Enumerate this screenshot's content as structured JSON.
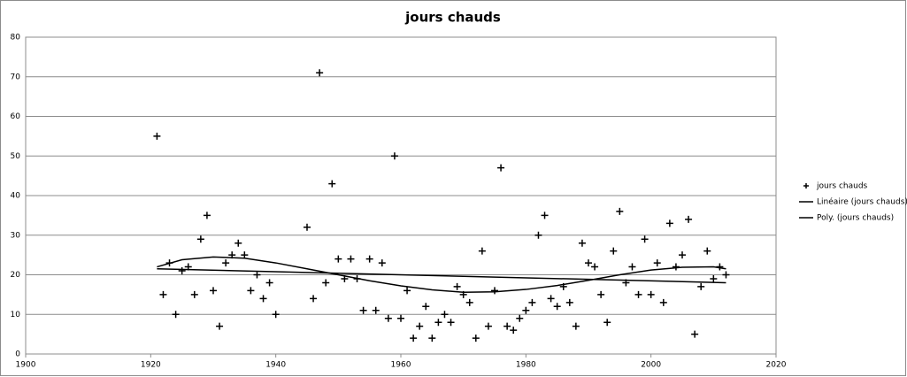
{
  "chart_data": {
    "type": "scatter",
    "title": "jours chauds",
    "xlim": [
      1900,
      2020
    ],
    "xticks": [
      1900,
      1920,
      1940,
      1960,
      1980,
      2000,
      2020
    ],
    "ylim": [
      0,
      80
    ],
    "yticks": [
      0,
      10,
      20,
      30,
      40,
      50,
      60,
      70,
      80
    ],
    "grid": true,
    "legend": "right",
    "series": [
      {
        "name": "jours chauds",
        "color": "#000000",
        "style": "marker",
        "x": [
          1921,
          1922,
          1923,
          1924,
          1925,
          1926,
          1927,
          1928,
          1929,
          1930,
          1931,
          1932,
          1933,
          1934,
          1935,
          1936,
          1937,
          1938,
          1939,
          1940,
          1945,
          1946,
          1947,
          1948,
          1949,
          1950,
          1951,
          1952,
          1953,
          1954,
          1955,
          1956,
          1957,
          1958,
          1959,
          1960,
          1961,
          1962,
          1963,
          1964,
          1965,
          1966,
          1967,
          1968,
          1969,
          1970,
          1971,
          1972,
          1973,
          1974,
          1975,
          1976,
          1977,
          1978,
          1979,
          1980,
          1981,
          1982,
          1983,
          1984,
          1985,
          1986,
          1987,
          1988,
          1989,
          1990,
          1991,
          1992,
          1993,
          1994,
          1995,
          1996,
          1997,
          1998,
          1999,
          2000,
          2001,
          2002,
          2003,
          2004,
          2005,
          2006,
          2007,
          2008,
          2009,
          2010,
          2011,
          2012
        ],
        "values": [
          55,
          15,
          23,
          10,
          21,
          22,
          15,
          29,
          35,
          16,
          7,
          23,
          25,
          28,
          25,
          16,
          20,
          14,
          18,
          10,
          32,
          14,
          71,
          18,
          43,
          24,
          19,
          24,
          19,
          11,
          24,
          11,
          23,
          9,
          50,
          9,
          16,
          4,
          7,
          12,
          4,
          8,
          10,
          8,
          17,
          15,
          13,
          4,
          26,
          7,
          16,
          47,
          7,
          6,
          9,
          11,
          13,
          30,
          35,
          14,
          12,
          17,
          13,
          7,
          28,
          23,
          22,
          15,
          8,
          26,
          36,
          18,
          22,
          15,
          29,
          15,
          23,
          13,
          33,
          22,
          25,
          34,
          5,
          17,
          26,
          19,
          22,
          20
        ]
      },
      {
        "name": "Linéaire (jours chauds)",
        "color": "#000000",
        "style": "line",
        "x": [
          1921,
          2012
        ],
        "values": [
          21.5,
          18
        ]
      },
      {
        "name": "Poly. (jours chauds)",
        "color": "#000000",
        "style": "line",
        "x": [
          1921,
          1925,
          1930,
          1935,
          1940,
          1945,
          1950,
          1955,
          1960,
          1965,
          1970,
          1975,
          1980,
          1985,
          1990,
          1995,
          2000,
          2005,
          2010,
          2012
        ],
        "values": [
          22,
          23.8,
          24.5,
          24.2,
          23,
          21.5,
          20,
          18.5,
          17.2,
          16.2,
          15.6,
          15.7,
          16.3,
          17.3,
          18.6,
          20,
          21.2,
          21.9,
          22,
          21.5
        ]
      }
    ]
  }
}
